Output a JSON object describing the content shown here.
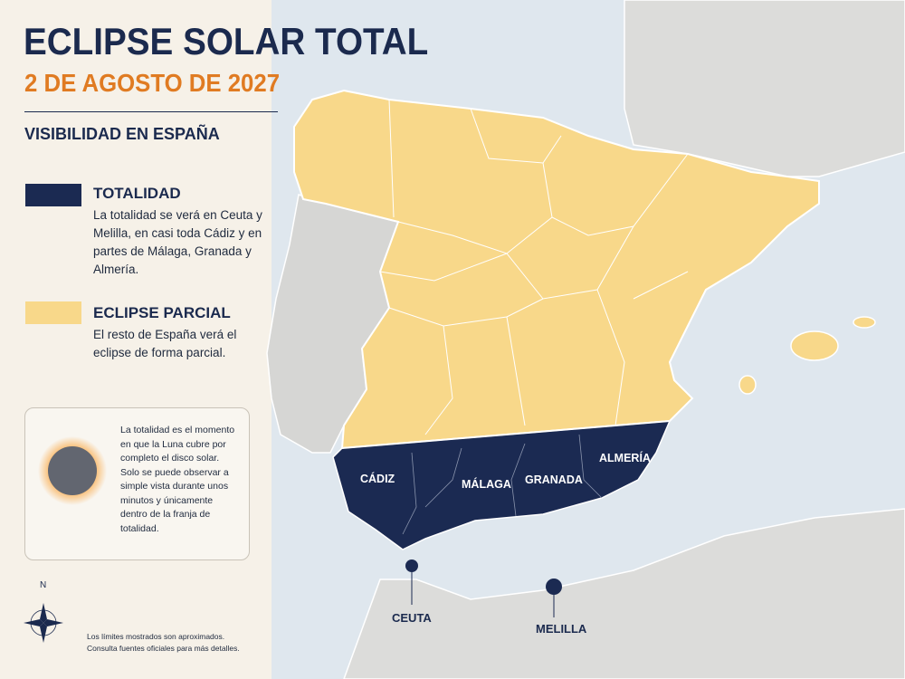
{
  "header": {
    "title": "ECLIPSE SOLAR TOTAL",
    "date": "2 DE AGOSTO DE 2027",
    "section": "VISIBILIDAD EN ESPAÑA"
  },
  "legend": [
    {
      "label": "TOTALIDAD",
      "text": "La totalidad se verá en Ceuta y Melilla, en casi toda Cádiz y en partes de Málaga, Granada y Almería."
    },
    {
      "label": "ECLIPSE PARCIAL",
      "text": "El resto de España verá el eclipse de forma parcial."
    }
  ],
  "info": "La totalidad es el momento en que la Luna cubre por completo el disco solar. Solo se puede observar a simple vista durante unos minutos y únicamente dentro de la franja de totalidad.",
  "compass": "N",
  "footnote": "Los límites mostrados son aproximados. Consulta fuentes oficiales para más detalles.",
  "map_labels": [
    "CÁDIZ",
    "MÁLAGA",
    "GRANADA",
    "ALMERÍA",
    "CEUTA",
    "MELILLA"
  ]
}
